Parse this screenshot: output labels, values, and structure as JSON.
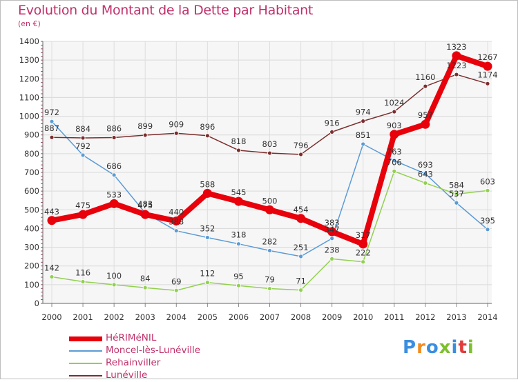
{
  "title": "Evolution du Montant de la Dette par Habitant",
  "subtitle": "(en €)",
  "brand": {
    "text": "Proxiti",
    "letter_colors": [
      "#3a8ee0",
      "#f08c1e",
      "#3a8ee0",
      "#7dc02e",
      "#3a8ee0",
      "#e23b3b",
      "#7dc02e"
    ]
  },
  "chart_data": {
    "type": "line",
    "title": "Evolution du Montant de la Dette par Habitant",
    "subtitle": "(en €)",
    "xlabel": "",
    "ylabel": "",
    "x": [
      "2000",
      "2001",
      "2002",
      "2003",
      "2004",
      "2005",
      "2006",
      "2007",
      "2008",
      "2009",
      "2010",
      "2011",
      "2012",
      "2013",
      "2014"
    ],
    "ylim": [
      0,
      1400
    ],
    "yticks": [
      "0",
      "100",
      "200",
      "300",
      "400",
      "500",
      "600",
      "700",
      "800",
      "900",
      "1000",
      "1100",
      "1200",
      "1300",
      "1400"
    ],
    "grid": true,
    "legend_position": "bottom-left",
    "series": [
      {
        "name": "HéRIMéNIL",
        "color": "#e8000b",
        "emphasis": true,
        "values": [
          443,
          475,
          533,
          475,
          440,
          588,
          545,
          500,
          454,
          383,
          317,
          903,
          957,
          1323,
          1267
        ],
        "labels": [
          "443",
          "475",
          "533",
          "475",
          "440",
          "588",
          "545",
          "500",
          "454",
          "383",
          "317",
          "903",
          "957",
          "1323",
          "1267"
        ]
      },
      {
        "name": "Moncel-lès-Lunéville",
        "color": "#5b9bd5",
        "values": [
          972,
          792,
          686,
          483,
          388,
          352,
          318,
          282,
          251,
          347,
          851,
          763,
          693,
          537,
          395
        ],
        "labels": [
          "972",
          "792",
          "686",
          "483",
          "388",
          "352",
          "318",
          "282",
          "251",
          "347",
          "851",
          "763",
          "693",
          "537",
          "395"
        ]
      },
      {
        "name": "Rehainviller",
        "color": "#92d050",
        "values": [
          142,
          116,
          100,
          84,
          69,
          112,
          95,
          79,
          71,
          238,
          222,
          706,
          643,
          584,
          603
        ],
        "labels": [
          "142",
          "116",
          "100",
          "84",
          "69",
          "112",
          "95",
          "79",
          "71",
          "238",
          "222",
          "706",
          "643",
          "584",
          "603"
        ]
      },
      {
        "name": "Lunéville",
        "color": "#7b2d2d",
        "values": [
          887,
          884,
          886,
          899,
          909,
          896,
          818,
          803,
          796,
          916,
          974,
          1024,
          1160,
          1223,
          1174
        ],
        "labels": [
          "887",
          "884",
          "886",
          "899",
          "909",
          "896",
          "818",
          "803",
          "796",
          "916",
          "974",
          "1024",
          "1160",
          "1223",
          "1174"
        ]
      }
    ]
  }
}
